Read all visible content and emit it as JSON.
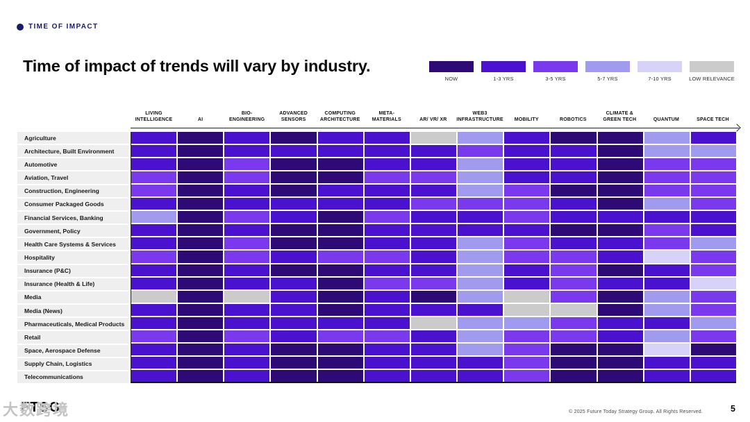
{
  "eyebrow": {
    "label": "TIME OF IMPACT"
  },
  "title": "Time of impact of trends will vary by industry.",
  "legend": [
    {
      "label": "NOW",
      "color": "#2d0a76"
    },
    {
      "label": "1-3 YRS",
      "color": "#4a11cf"
    },
    {
      "label": "3-5 YRS",
      "color": "#7a39ed"
    },
    {
      "label": "5-7 YRS",
      "color": "#a19bef"
    },
    {
      "label": "7-10 YRS",
      "color": "#d7d3f8"
    },
    {
      "label": "LOW RELEVANCE",
      "color": "#cbcbcb"
    }
  ],
  "chart_data": {
    "type": "heatmap",
    "title": "Time of impact of trends will vary by industry.",
    "legend_position": "top-right",
    "impact_levels": [
      "NOW",
      "1-3 YRS",
      "3-5 YRS",
      "5-7 YRS",
      "7-10 YRS",
      "LOW RELEVANCE"
    ],
    "level_colors": [
      "#2d0a76",
      "#4a11cf",
      "#7a39ed",
      "#a19bef",
      "#d7d3f8",
      "#cbcbcb"
    ],
    "columns": [
      "LIVING\nINTELLIGENCE",
      "AI",
      "BIO-\nENGINEERING",
      "ADVANCED\nSENSORS",
      "COMPUTING\nARCHITECTURE",
      "META-\nMATERIALS",
      "AR/ VR/ XR",
      "WEB3\nINFRASTRUCTURE",
      "MOBILITY",
      "ROBOTICS",
      "CLIMATE &\nGREEN TECH",
      "QUANTUM",
      "SPACE TECH"
    ],
    "rows": [
      "Agriculture",
      "Architecture, Built Environment",
      "Automotive",
      "Aviation, Travel",
      "Construction, Engineering",
      "Consumer Packaged Goods",
      "Financial Services, Banking",
      "Government, Policy",
      "Health Care Systems & Services",
      "Hospitality",
      "Insurance (P&C)",
      "Insurance (Health & Life)",
      "Media",
      "Media (News)",
      "Pharmaceuticals, Medical Products",
      "Retail",
      "Space, Aerospace Defense",
      "Supply Chain, Logistics",
      "Telecommunications"
    ],
    "values": [
      [
        1,
        0,
        1,
        0,
        1,
        1,
        5,
        3,
        1,
        0,
        0,
        3,
        1
      ],
      [
        1,
        0,
        1,
        1,
        1,
        1,
        1,
        2,
        1,
        1,
        0,
        3,
        3
      ],
      [
        1,
        0,
        2,
        0,
        0,
        1,
        1,
        3,
        1,
        1,
        0,
        2,
        2
      ],
      [
        2,
        0,
        2,
        0,
        0,
        2,
        2,
        3,
        1,
        1,
        0,
        2,
        2
      ],
      [
        2,
        0,
        1,
        0,
        1,
        1,
        1,
        3,
        2,
        0,
        0,
        2,
        2
      ],
      [
        1,
        0,
        1,
        1,
        1,
        1,
        2,
        2,
        2,
        1,
        0,
        3,
        2
      ],
      [
        3,
        0,
        2,
        1,
        0,
        2,
        1,
        1,
        2,
        1,
        1,
        1,
        1
      ],
      [
        1,
        0,
        1,
        0,
        0,
        1,
        1,
        1,
        1,
        0,
        0,
        2,
        1
      ],
      [
        1,
        0,
        2,
        0,
        0,
        1,
        1,
        3,
        2,
        1,
        1,
        2,
        3
      ],
      [
        2,
        0,
        2,
        1,
        2,
        2,
        1,
        3,
        2,
        2,
        1,
        4,
        2
      ],
      [
        1,
        0,
        1,
        0,
        0,
        1,
        1,
        3,
        1,
        2,
        0,
        1,
        2
      ],
      [
        1,
        0,
        1,
        1,
        0,
        2,
        2,
        3,
        1,
        2,
        1,
        1,
        4
      ],
      [
        5,
        0,
        5,
        1,
        0,
        1,
        0,
        3,
        5,
        2,
        0,
        3,
        2
      ],
      [
        1,
        0,
        1,
        1,
        0,
        1,
        1,
        1,
        5,
        5,
        0,
        3,
        2
      ],
      [
        1,
        0,
        1,
        1,
        1,
        1,
        5,
        3,
        3,
        2,
        1,
        1,
        3
      ],
      [
        2,
        0,
        2,
        1,
        2,
        2,
        1,
        3,
        2,
        2,
        1,
        3,
        2
      ],
      [
        1,
        0,
        1,
        0,
        0,
        1,
        1,
        3,
        2,
        0,
        0,
        4,
        0
      ],
      [
        1,
        0,
        1,
        0,
        0,
        1,
        1,
        1,
        2,
        0,
        0,
        1,
        1
      ],
      [
        1,
        0,
        1,
        0,
        0,
        1,
        1,
        1,
        2,
        0,
        0,
        1,
        1
      ]
    ]
  },
  "footer": {
    "logo": "FTSG",
    "watermark": "大数跨境",
    "copyright": "© 2025 Future Today Strategy Group. All Rights Reserved.",
    "page_number": "5"
  }
}
